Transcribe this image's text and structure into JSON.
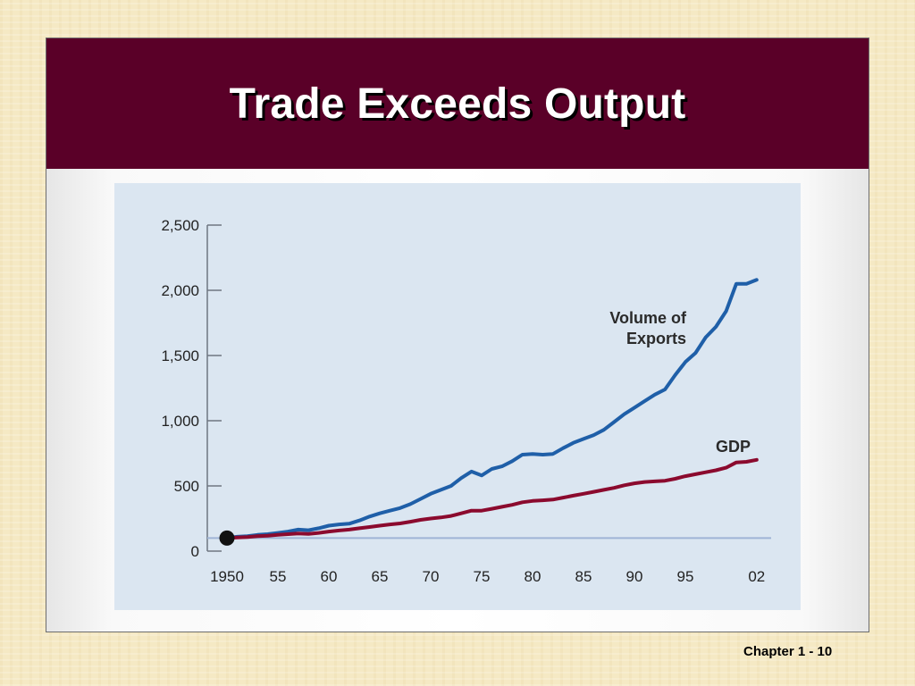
{
  "slide": {
    "title": "Trade Exceeds Output",
    "footer": "Chapter 1 - 10"
  },
  "chart_data": {
    "type": "line",
    "xlabel": "",
    "ylabel": "",
    "xlim": [
      1950,
      2003
    ],
    "ylim": [
      0,
      2500
    ],
    "yticks": [
      0,
      500,
      1000,
      1500,
      2000,
      2500
    ],
    "ytick_labels": [
      "0",
      "500",
      "1,000",
      "1,500",
      "2,000",
      "2,500"
    ],
    "xticks": [
      1950,
      1955,
      1960,
      1965,
      1970,
      1975,
      1980,
      1985,
      1990,
      1995,
      2002
    ],
    "xtick_labels": [
      "1950",
      "55",
      "60",
      "65",
      "70",
      "75",
      "80",
      "85",
      "90",
      "95",
      "02"
    ],
    "baseline": 100,
    "start_marker": {
      "x": 1950,
      "y": 100
    },
    "grid": false,
    "legend": "inline labels",
    "series": [
      {
        "name": "Volume of Exports",
        "label_lines": [
          "Volume of",
          "Exports"
        ],
        "color": "#1f5fa8",
        "x": [
          1950,
          1951,
          1952,
          1953,
          1954,
          1955,
          1956,
          1957,
          1958,
          1959,
          1960,
          1961,
          1962,
          1963,
          1964,
          1965,
          1966,
          1967,
          1968,
          1969,
          1970,
          1971,
          1972,
          1973,
          1974,
          1975,
          1976,
          1977,
          1978,
          1979,
          1980,
          1981,
          1982,
          1983,
          1984,
          1985,
          1986,
          1987,
          1988,
          1989,
          1990,
          1991,
          1992,
          1993,
          1994,
          1995,
          1996,
          1997,
          1998,
          1999,
          2000,
          2001,
          2002
        ],
        "y": [
          100,
          110,
          115,
          125,
          130,
          140,
          150,
          165,
          160,
          175,
          195,
          205,
          210,
          235,
          265,
          290,
          310,
          330,
          360,
          400,
          440,
          470,
          500,
          560,
          610,
          580,
          630,
          650,
          690,
          740,
          745,
          740,
          745,
          790,
          830,
          860,
          890,
          930,
          990,
          1050,
          1100,
          1150,
          1200,
          1240,
          1350,
          1450,
          1520,
          1640,
          1720,
          1840,
          2050,
          2050,
          2080
        ]
      },
      {
        "name": "GDP",
        "label_lines": [
          "GDP"
        ],
        "color": "#8b0a2e",
        "x": [
          1950,
          1951,
          1952,
          1953,
          1954,
          1955,
          1956,
          1957,
          1958,
          1959,
          1960,
          1961,
          1962,
          1963,
          1964,
          1965,
          1966,
          1967,
          1968,
          1969,
          1970,
          1971,
          1972,
          1973,
          1974,
          1975,
          1976,
          1977,
          1978,
          1979,
          1980,
          1981,
          1982,
          1983,
          1984,
          1985,
          1986,
          1987,
          1988,
          1989,
          1990,
          1991,
          1992,
          1993,
          1994,
          1995,
          1996,
          1997,
          1998,
          1999,
          2000,
          2001,
          2002
        ],
        "y": [
          100,
          105,
          108,
          115,
          118,
          125,
          130,
          135,
          132,
          140,
          150,
          158,
          165,
          175,
          185,
          195,
          205,
          212,
          225,
          240,
          250,
          258,
          270,
          290,
          310,
          310,
          325,
          340,
          355,
          375,
          385,
          390,
          395,
          410,
          425,
          440,
          455,
          470,
          485,
          505,
          520,
          530,
          535,
          540,
          555,
          575,
          590,
          605,
          620,
          640,
          680,
          685,
          700
        ]
      }
    ]
  }
}
